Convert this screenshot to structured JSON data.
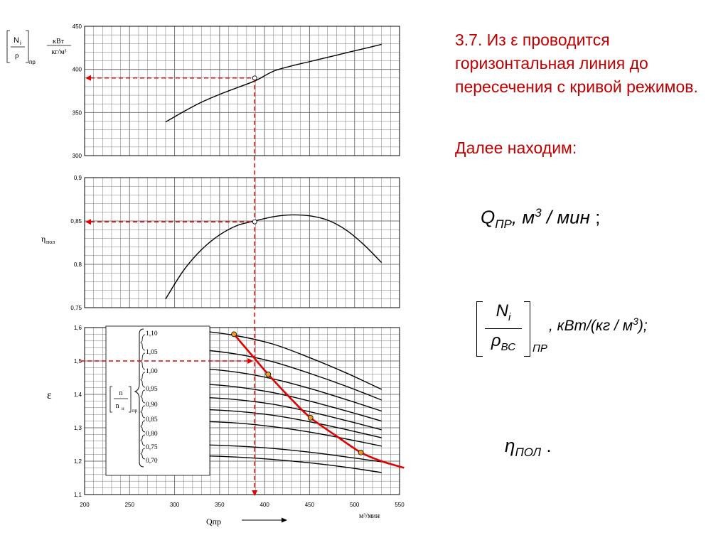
{
  "slide": {
    "heading": "3.7. Из  ε  проводится горизонтальная линия до пересечения с кривой режимов.",
    "further": "Далее находим:",
    "formula_q": {
      "symbol": "Q",
      "sub": "ПР",
      "unit_prefix": ", м",
      "unit_sup": "3",
      "unit_rest": " / мин",
      "end": ";"
    },
    "formula_n": {
      "num": "N",
      "num_sub": "i",
      "den": "ρ",
      "den_sub": "ВС",
      "sub": "ПР",
      "unit_prefix": ", кВт/(кг / м",
      "unit_sup": "3",
      "unit_rest": ");"
    },
    "formula_eta": {
      "symbol": "η",
      "sub": "ПОЛ",
      "end": "."
    }
  },
  "colors": {
    "grid": "#777777",
    "curve": "#000000",
    "accent": "#e30000",
    "text_accent": "#c00000"
  },
  "chart_data": [
    {
      "type": "line",
      "ylabel_bracket_num": "N",
      "ylabel_bracket_num_sub": "i",
      "ylabel_bracket_den": "ρ",
      "ylabel_bracket_sub": "пр",
      "ylabel_unit_num": "кВт",
      "ylabel_unit_den": "кг/м³",
      "xlim": [
        200,
        550
      ],
      "ylim": [
        300,
        450
      ],
      "yticks": [
        "300",
        "350",
        "400",
        "450"
      ],
      "series": [
        {
          "x": [
            290,
            310,
            330,
            350,
            370,
            390,
            410,
            430,
            450,
            470,
            490,
            510,
            530
          ],
          "y": [
            339,
            351,
            362,
            371,
            379,
            387,
            398,
            404,
            409,
            414,
            419,
            424,
            429
          ]
        }
      ],
      "marker": {
        "x": 389,
        "y": 390
      }
    },
    {
      "type": "line",
      "ylabel": "η",
      "ylabel_sub": "пол",
      "xlim": [
        200,
        550
      ],
      "ylim": [
        0.75,
        0.9
      ],
      "yticks": [
        "0,75",
        "0,8",
        "0,85",
        "0,9"
      ],
      "series": [
        {
          "x": [
            290,
            310,
            330,
            350,
            370,
            389,
            410,
            430,
            450,
            470,
            490,
            510,
            530
          ],
          "y": [
            0.76,
            0.793,
            0.817,
            0.834,
            0.845,
            0.85,
            0.855,
            0.857,
            0.856,
            0.851,
            0.84,
            0.823,
            0.802
          ]
        }
      ],
      "marker": {
        "x": 389,
        "y": 0.849
      }
    },
    {
      "type": "line",
      "ylabel": "ε",
      "xlabel": "Qпр",
      "xunit": "м³/мин",
      "xlim": [
        200,
        550
      ],
      "ylim": [
        1.1,
        1.6
      ],
      "xticks": [
        "200",
        "250",
        "300",
        "350",
        "400",
        "450",
        "500",
        "550"
      ],
      "yticks": [
        "1,1",
        "1,2",
        "1,3",
        "1,4",
        "1,5",
        "1,6"
      ],
      "legend_title_num": "n",
      "legend_title_den": "n",
      "legend_title_den_sub": "н",
      "legend_title_sub": "пр",
      "series": [
        {
          "name": "1,10",
          "x": [
            290,
            330,
            370,
            410,
            450,
            490,
            530
          ],
          "y": [
            1.59,
            1.589,
            1.575,
            1.55,
            1.51,
            1.465,
            1.415
          ]
        },
        {
          "name": "1,05",
          "x": [
            290,
            330,
            370,
            410,
            450,
            490,
            530
          ],
          "y": [
            1.534,
            1.533,
            1.52,
            1.497,
            1.463,
            1.425,
            1.383
          ]
        },
        {
          "name": "1,00",
          "x": [
            290,
            330,
            370,
            410,
            450,
            490,
            530
          ],
          "y": [
            1.478,
            1.477,
            1.466,
            1.446,
            1.418,
            1.385,
            1.35
          ]
        },
        {
          "name": "0,95",
          "x": [
            290,
            330,
            370,
            410,
            450,
            490,
            530
          ],
          "y": [
            1.432,
            1.431,
            1.422,
            1.405,
            1.38,
            1.351,
            1.32
          ]
        },
        {
          "name": "0,90",
          "x": [
            290,
            330,
            370,
            410,
            450,
            490,
            530
          ],
          "y": [
            1.392,
            1.391,
            1.384,
            1.37,
            1.348,
            1.322,
            1.294
          ]
        },
        {
          "name": "0,85",
          "x": [
            290,
            330,
            370,
            410,
            450,
            490,
            530
          ],
          "y": [
            1.356,
            1.355,
            1.349,
            1.337,
            1.318,
            1.295,
            1.27
          ]
        },
        {
          "name": "0,80",
          "x": [
            290,
            330,
            370,
            410,
            450,
            490,
            530
          ],
          "y": [
            1.32,
            1.319,
            1.314,
            1.303,
            1.287,
            1.267,
            1.245
          ]
        },
        {
          "name": "0,75",
          "x": [
            290,
            330,
            370,
            410,
            450,
            490,
            530
          ],
          "y": [
            1.25,
            1.249,
            1.245,
            1.238,
            1.227,
            1.213,
            1.198
          ]
        },
        {
          "name": "0,70",
          "x": [
            290,
            330,
            370,
            410,
            450,
            490,
            530
          ],
          "y": [
            1.217,
            1.216,
            1.212,
            1.205,
            1.195,
            1.182,
            1.166
          ]
        }
      ],
      "surge_line": {
        "x": [
          366,
          385,
          404,
          430,
          451,
          480,
          507,
          530,
          555
        ],
        "y": [
          1.58,
          1.52,
          1.46,
          1.385,
          1.33,
          1.275,
          1.226,
          1.2,
          1.18
        ]
      },
      "surge_markers": [
        {
          "x": 366,
          "y": 1.58
        },
        {
          "x": 404,
          "y": 1.46
        },
        {
          "x": 451,
          "y": 1.33
        },
        {
          "x": 507,
          "y": 1.226
        }
      ],
      "selected_point": {
        "x": 389,
        "y": 1.5
      }
    }
  ]
}
